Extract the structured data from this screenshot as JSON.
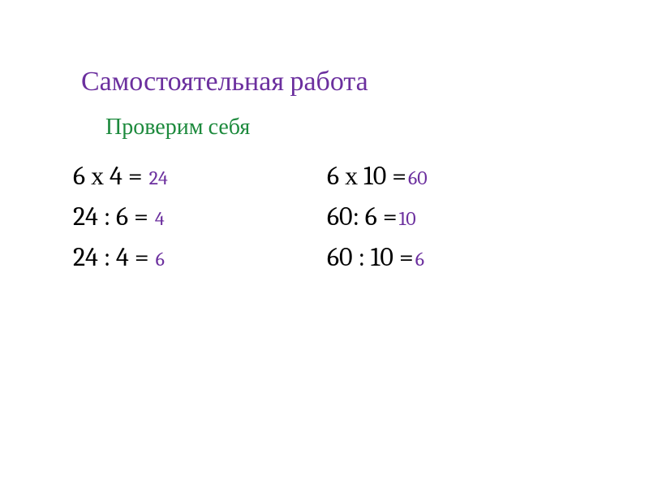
{
  "title": "Самостоятельная работа",
  "subtitle": "Проверим себя",
  "colors": {
    "title_color": "#6b2f9e",
    "subtitle_color": "#1d8a3d",
    "equation_color": "#000000",
    "answer_color": "#6b2f9e",
    "background": "#ffffff"
  },
  "typography": {
    "title_fontsize": 34,
    "subtitle_fontsize": 28,
    "equation_fontsize": 32,
    "answer_fontsize": 24,
    "font_family": "Cambria, Georgia, serif"
  },
  "columns": [
    {
      "rows": [
        {
          "equation": "6 х 4 =",
          "answer": "24"
        },
        {
          "equation": "24 : 6 =",
          "answer": "4"
        },
        {
          "equation": "24 : 4 =",
          "answer": "6"
        }
      ]
    },
    {
      "rows": [
        {
          "equation": "6 х 10 =",
          "answer": "60"
        },
        {
          "equation": "60: 6 =",
          "answer": "10"
        },
        {
          "equation": "60 : 10 =",
          "answer": "6"
        }
      ]
    }
  ]
}
